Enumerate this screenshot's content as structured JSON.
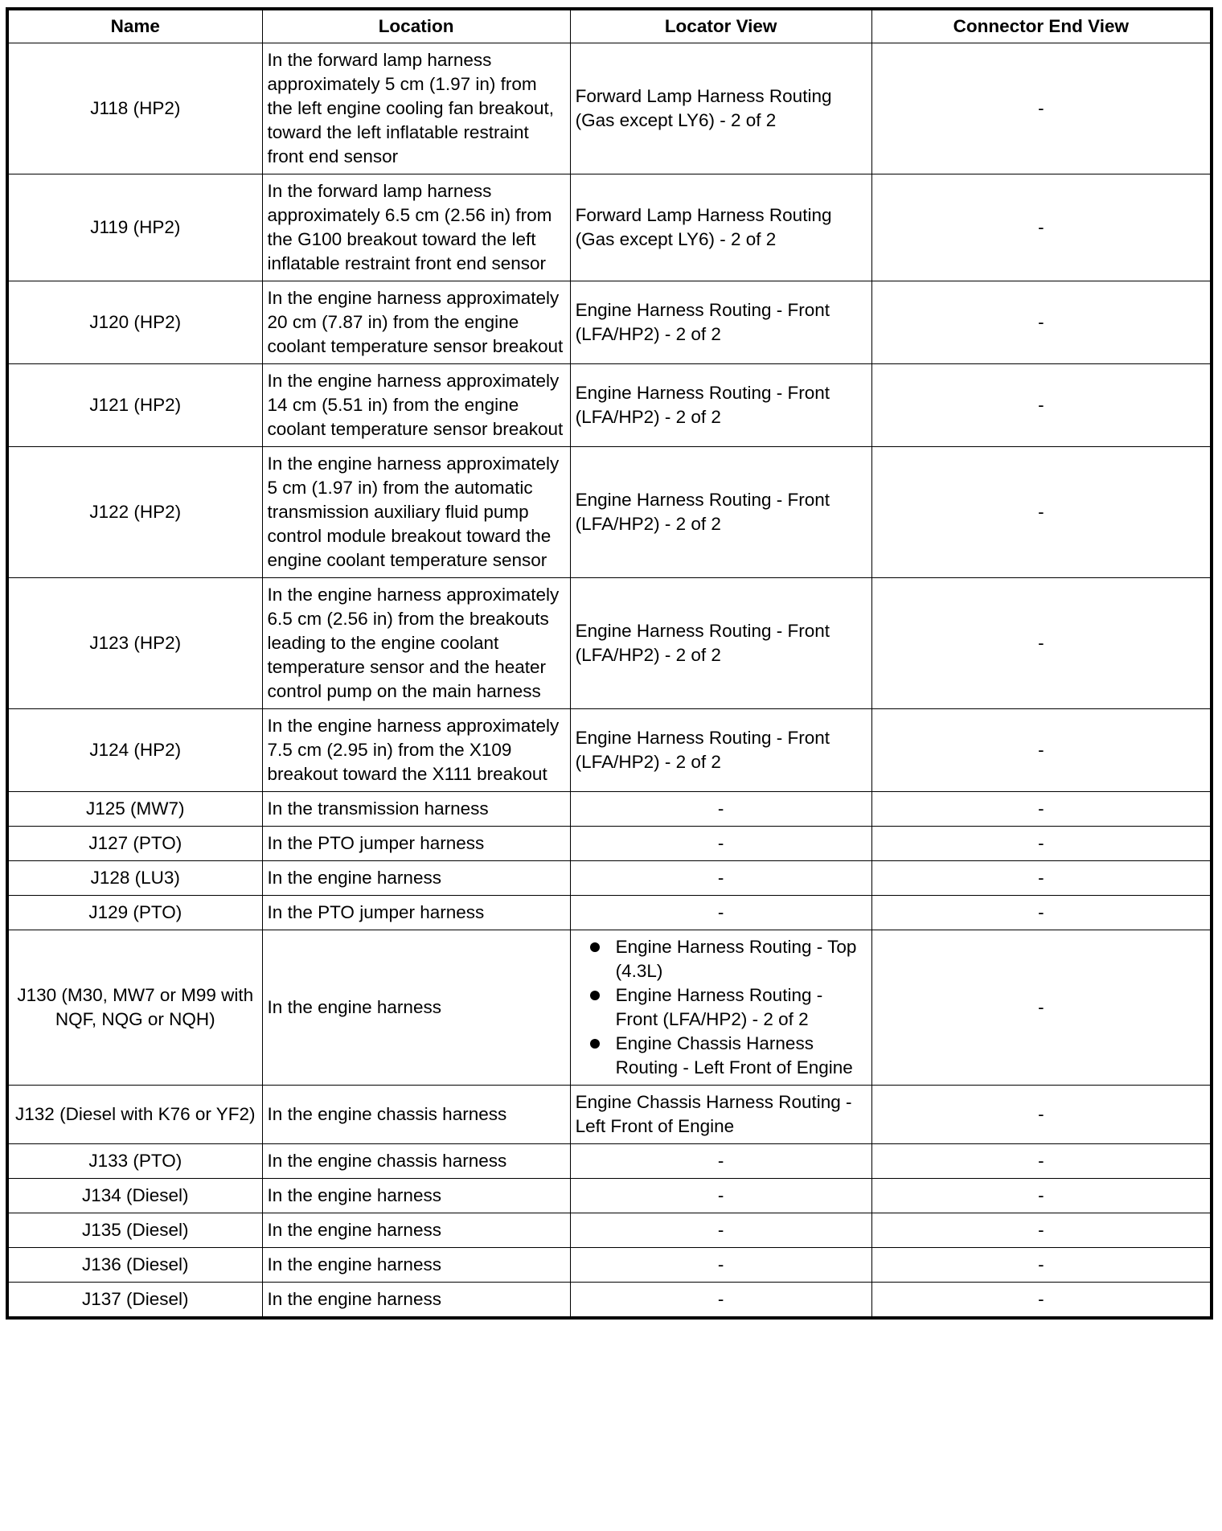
{
  "headers": [
    "Name",
    "Location",
    "Locator View",
    "Connector End View"
  ],
  "rows": [
    {
      "name": "J118 (HP2)",
      "location": "In the forward lamp harness approximately 5 cm (1.97 in) from the left engine cooling fan breakout, toward the left inflatable restraint front end sensor",
      "locator": "Forward Lamp Harness Routing (Gas except LY6) - 2 of 2",
      "connector": "-"
    },
    {
      "name": "J119 (HP2)",
      "location": "In the forward lamp harness approximately 6.5 cm (2.56 in) from the G100 breakout toward the left inflatable restraint front end sensor",
      "locator": "Forward Lamp Harness Routing (Gas except LY6) - 2 of 2",
      "connector": "-"
    },
    {
      "name": "J120 (HP2)",
      "location": "In the engine harness approximately 20 cm (7.87 in) from the engine coolant temperature sensor breakout",
      "locator": "Engine Harness Routing - Front (LFA/HP2) - 2 of 2",
      "connector": "-"
    },
    {
      "name": "J121 (HP2)",
      "location": "In the engine harness approximately 14 cm (5.51 in) from the engine coolant temperature sensor breakout",
      "locator": "Engine Harness Routing - Front (LFA/HP2) - 2 of 2",
      "connector": "-"
    },
    {
      "name": "J122 (HP2)",
      "location": "In the engine harness approximately 5 cm (1.97 in) from the automatic transmission auxiliary fluid pump control module breakout toward the engine coolant temperature sensor",
      "locator": "Engine Harness Routing - Front (LFA/HP2) - 2 of 2",
      "connector": "-"
    },
    {
      "name": "J123 (HP2)",
      "location": "In the engine harness approximately 6.5 cm (2.56 in) from the breakouts leading to the engine coolant temperature sensor and the heater control pump on the main harness",
      "locator": "Engine Harness Routing - Front (LFA/HP2) - 2 of 2",
      "connector": "-"
    },
    {
      "name": "J124 (HP2)",
      "location": "In the engine harness approximately 7.5 cm (2.95 in) from the X109 breakout toward the X111 breakout",
      "locator": "Engine Harness Routing - Front (LFA/HP2) - 2 of 2",
      "connector": "-"
    },
    {
      "name": "J125 (MW7)",
      "location": "In the transmission harness",
      "locator": "-",
      "connector": "-"
    },
    {
      "name": "J127 (PTO)",
      "location": "In the PTO jumper harness",
      "locator": "-",
      "connector": "-"
    },
    {
      "name": "J128 (LU3)",
      "location": "In the engine harness",
      "locator": "-",
      "connector": "-"
    },
    {
      "name": "J129 (PTO)",
      "location": "In the PTO jumper harness",
      "locator": "-",
      "connector": "-"
    },
    {
      "name": "J130 (M30, MW7 or M99 with NQF, NQG or NQH)",
      "location": "In the engine harness",
      "locator_list": [
        "Engine Harness Routing - Top (4.3L)",
        "Engine Harness Routing - Front (LFA/HP2) - 2 of 2",
        "Engine Chassis Harness Routing - Left Front of Engine"
      ],
      "connector": "-"
    },
    {
      "name": "J132 (Diesel with K76 or YF2)",
      "location": "In the engine chassis harness",
      "locator": "Engine Chassis Harness Routing - Left Front of Engine",
      "connector": "-"
    },
    {
      "name": "J133 (PTO)",
      "location": "In the engine chassis harness",
      "locator": "-",
      "connector": "-"
    },
    {
      "name": "J134 (Diesel)",
      "location": "In the engine harness",
      "locator": "-",
      "connector": "-"
    },
    {
      "name": "J135 (Diesel)",
      "location": "In the engine harness",
      "locator": "-",
      "connector": "-"
    },
    {
      "name": "J136 (Diesel)",
      "location": "In the engine harness",
      "locator": "-",
      "connector": "-"
    },
    {
      "name": "J137 (Diesel)",
      "location": "In the engine harness",
      "locator": "-",
      "connector": "-"
    }
  ]
}
